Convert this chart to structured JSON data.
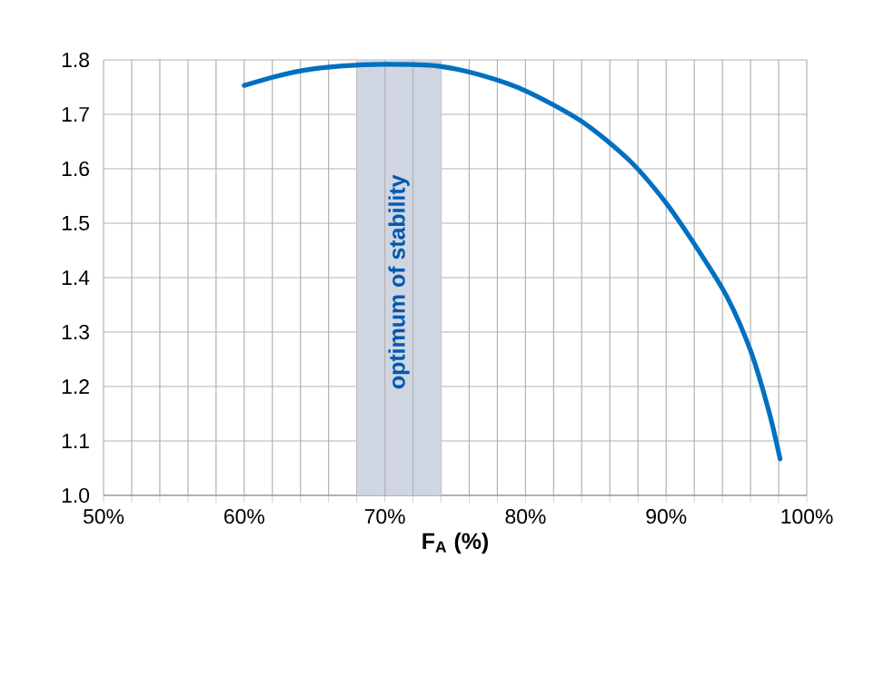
{
  "chart_data": {
    "type": "line",
    "xlabel": "**F$_{A}$ (%)**",
    "x": [
      60,
      62,
      64.3,
      67,
      70,
      73.7,
      77.1,
      80.1,
      84,
      87.4,
      90,
      92.2,
      94.3,
      96,
      97.3,
      98.1
    ],
    "series": [
      {
        "color": "#0070c0",
        "values": [
          1.753,
          1.768,
          1.781,
          1.789,
          1.792,
          1.789,
          1.77,
          1.742,
          1.687,
          1.615,
          1.537,
          1.454,
          1.366,
          1.266,
          1.155,
          1.067
        ]
      }
    ],
    "xlim": [
      50,
      100
    ],
    "ylim": [
      1.0,
      1.8
    ],
    "xticks": [
      {
        "value": 50,
        "label": "50%"
      },
      {
        "value": 52,
        "label": null
      },
      {
        "value": 54,
        "label": null
      },
      {
        "value": 56,
        "label": null
      },
      {
        "value": 58,
        "label": null
      },
      {
        "value": 60,
        "label": "60%"
      },
      {
        "value": 62,
        "label": null
      },
      {
        "value": 64,
        "label": null
      },
      {
        "value": 66,
        "label": null
      },
      {
        "value": 68,
        "label": null
      },
      {
        "value": 70,
        "label": "70%"
      },
      {
        "value": 72,
        "label": null
      },
      {
        "value": 74,
        "label": null
      },
      {
        "value": 76,
        "label": null
      },
      {
        "value": 78,
        "label": null
      },
      {
        "value": 80,
        "label": "80%"
      },
      {
        "value": 82,
        "label": null
      },
      {
        "value": 84,
        "label": null
      },
      {
        "value": 86,
        "label": null
      },
      {
        "value": 88,
        "label": null
      },
      {
        "value": 90,
        "label": "90%"
      },
      {
        "value": 92,
        "label": null
      },
      {
        "value": 94,
        "label": null
      },
      {
        "value": 96,
        "label": null
      },
      {
        "value": 98,
        "label": null
      },
      {
        "value": 100,
        "label": "100%"
      }
    ],
    "yticks": [
      {
        "value": 1.0,
        "label": "1.0"
      },
      {
        "value": 1.1,
        "label": "1.1"
      },
      {
        "value": 1.2,
        "label": "1.2"
      },
      {
        "value": 1.3,
        "label": "1.3"
      },
      {
        "value": 1.4,
        "label": "1.4"
      },
      {
        "value": 1.5,
        "label": "1.5"
      },
      {
        "value": 1.6,
        "label": "1.6"
      },
      {
        "value": 1.7,
        "label": "1.7"
      },
      {
        "value": 1.8,
        "label": "1.8"
      }
    ],
    "grid": true,
    "bands": [
      {
        "axis": "x",
        "from": 68,
        "to": 74,
        "label": "optimum of stability",
        "color": "#cfd6e2"
      }
    ]
  }
}
